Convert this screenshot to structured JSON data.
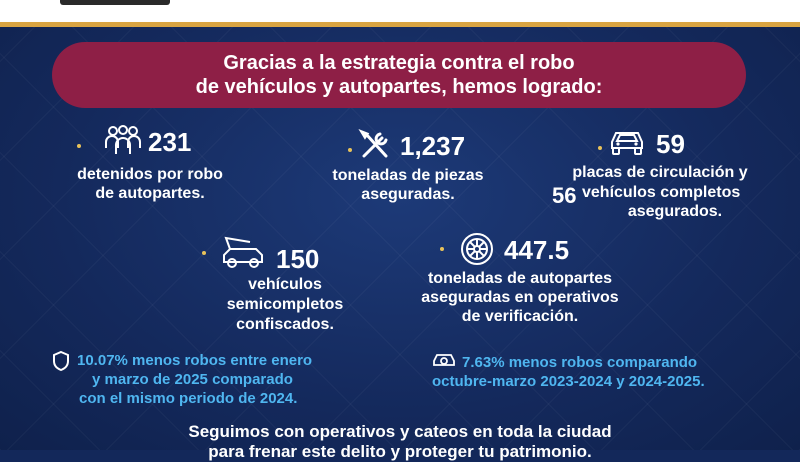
{
  "banner": {
    "line1": "Gracias a la estrategia contra el robo",
    "line2": "de vehículos y autopartes, hemos logrado:"
  },
  "stats": [
    {
      "icon": "people-group-icon",
      "value": "231",
      "desc1": "detenidos por robo",
      "desc2": "de autopartes."
    },
    {
      "icon": "tools-icon",
      "value": "1,237",
      "desc1": "toneladas de piezas",
      "desc2": "aseguradas."
    },
    {
      "icon": "car-icon",
      "value": "59",
      "desc1": "placas de circulación y",
      "value2": "56",
      "desc2": "vehículos completos",
      "desc3": "asegurados."
    },
    {
      "icon": "car-open-hood-icon",
      "value": "150",
      "desc1": "vehículos",
      "desc2": "semicompletos",
      "desc3": "confiscados."
    },
    {
      "icon": "wheel-icon",
      "value": "447.5",
      "desc1": "toneladas de autopartes",
      "desc2": "aseguradas en operativos",
      "desc3": "de verificación."
    }
  ],
  "notes": [
    {
      "icon": "shield-icon",
      "line1": "10.07% menos robos entre enero",
      "line2": "y marzo de 2025 comparado",
      "line3": "con el mismo periodo de 2024."
    },
    {
      "icon": "car-alert-icon",
      "line1": "7.63% menos robos comparando",
      "line2": "octubre-marzo 2023-2024 y 2024-2025."
    }
  ],
  "footer": {
    "line1": "Seguimos con operativos y cateos en toda la ciudad",
    "line2": "para frenar este delito y proteger tu patrimonio."
  },
  "colors": {
    "banner": "#8e1f46",
    "accent_gold": "#d9a441",
    "note_blue": "#4fb6f0",
    "background": "#13285a"
  }
}
